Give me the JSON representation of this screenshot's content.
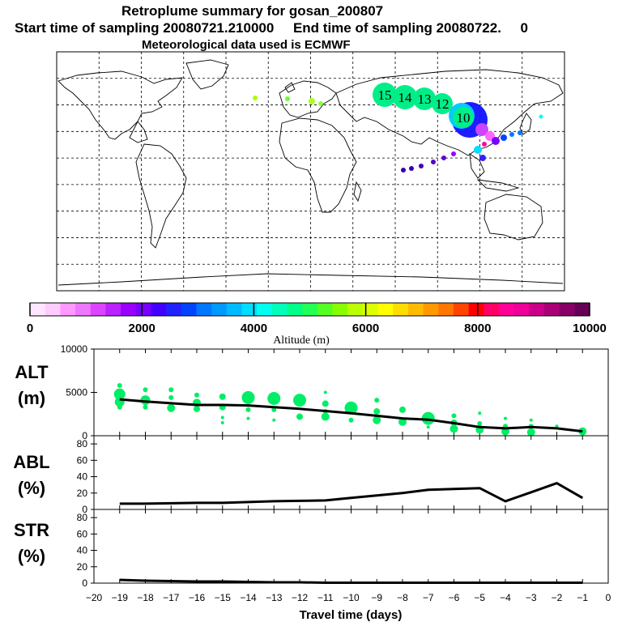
{
  "header": {
    "title": "Retroplume summary for gosan_200807",
    "line2": "Start time of sampling 20080721.210000     End time of sampling 20080722.     0",
    "line3": "Meteorological data used is ECMWF"
  },
  "colorbar": {
    "label": "Altitude (m)",
    "ticks": [
      "0",
      "2000",
      "4000",
      "6000",
      "8000",
      "10000"
    ],
    "colors": [
      "#ffe6ff",
      "#ffccff",
      "#ff99ff",
      "#ee77ff",
      "#dd44ff",
      "#bb22ff",
      "#9900ff",
      "#7700ff",
      "#4400ff",
      "#2222ff",
      "#0044ff",
      "#0077ff",
      "#0099ff",
      "#00bbff",
      "#00ddff",
      "#00ffee",
      "#00ffbb",
      "#00ff88",
      "#22ff55",
      "#55ff22",
      "#88ff00",
      "#bbff00",
      "#ddff00",
      "#ffff00",
      "#ffdd00",
      "#ffbb00",
      "#ff9900",
      "#ff7700",
      "#ff4400",
      "#ff0000",
      "#ff0066",
      "#ff0099",
      "#ee0099",
      "#cc0088",
      "#aa0077",
      "#880066",
      "#660055"
    ]
  },
  "map": {
    "plume_labels": [
      "15",
      "14",
      "13",
      "12",
      "10"
    ],
    "plume_color": "#00ee88"
  },
  "chart_data": [
    {
      "type": "line",
      "panel": "ALT",
      "ylabel_line1": "ALT",
      "ylabel_line2": "(m)",
      "ylim": [
        0,
        10000
      ],
      "yticks": [
        "10000",
        "5000",
        "0"
      ],
      "x": [
        -19,
        -18,
        -17,
        -16,
        -15,
        -14,
        -13,
        -12,
        -11,
        -10,
        -9,
        -8,
        -7,
        -6,
        -5,
        -4,
        -3,
        -2,
        -1
      ],
      "values": [
        4200,
        3950,
        3750,
        3550,
        3550,
        3500,
        3300,
        3100,
        2850,
        2600,
        2300,
        2000,
        1850,
        1450,
        1000,
        850,
        1000,
        850,
        500
      ],
      "cluster_points": [
        {
          "x": -19,
          "y": 4800,
          "s": 7
        },
        {
          "x": -19,
          "y": 3900,
          "s": 6
        },
        {
          "x": -19,
          "y": 5800,
          "s": 3
        },
        {
          "x": -19,
          "y": 3300,
          "s": 3
        },
        {
          "x": -18,
          "y": 4100,
          "s": 6
        },
        {
          "x": -18,
          "y": 5300,
          "s": 3
        },
        {
          "x": -18,
          "y": 3300,
          "s": 3
        },
        {
          "x": -17,
          "y": 4400,
          "s": 3
        },
        {
          "x": -17,
          "y": 3200,
          "s": 5
        },
        {
          "x": -17,
          "y": 5300,
          "s": 3
        },
        {
          "x": -16,
          "y": 3800,
          "s": 5
        },
        {
          "x": -16,
          "y": 4700,
          "s": 3
        },
        {
          "x": -16,
          "y": 3100,
          "s": 4
        },
        {
          "x": -15,
          "y": 3300,
          "s": 4
        },
        {
          "x": -15,
          "y": 4500,
          "s": 4
        },
        {
          "x": -15,
          "y": 2100,
          "s": 2
        },
        {
          "x": -15,
          "y": 1500,
          "s": 2
        },
        {
          "x": -14,
          "y": 4400,
          "s": 8
        },
        {
          "x": -14,
          "y": 3000,
          "s": 3
        },
        {
          "x": -14,
          "y": 2000,
          "s": 2
        },
        {
          "x": -13,
          "y": 4300,
          "s": 8
        },
        {
          "x": -13,
          "y": 3000,
          "s": 3
        },
        {
          "x": -13,
          "y": 1800,
          "s": 2
        },
        {
          "x": -12,
          "y": 4100,
          "s": 8
        },
        {
          "x": -12,
          "y": 2200,
          "s": 4
        },
        {
          "x": -11,
          "y": 3700,
          "s": 4
        },
        {
          "x": -11,
          "y": 2800,
          "s": 3
        },
        {
          "x": -11,
          "y": 2200,
          "s": 5
        },
        {
          "x": -11,
          "y": 5000,
          "s": 2
        },
        {
          "x": -10,
          "y": 3200,
          "s": 8
        },
        {
          "x": -10,
          "y": 1800,
          "s": 3
        },
        {
          "x": -9,
          "y": 4100,
          "s": 3
        },
        {
          "x": -9,
          "y": 2800,
          "s": 4
        },
        {
          "x": -9,
          "y": 1800,
          "s": 5
        },
        {
          "x": -8,
          "y": 3000,
          "s": 4
        },
        {
          "x": -8,
          "y": 1600,
          "s": 5
        },
        {
          "x": -7,
          "y": 2000,
          "s": 8
        },
        {
          "x": -7,
          "y": 1000,
          "s": 2
        },
        {
          "x": -6,
          "y": 2300,
          "s": 3
        },
        {
          "x": -6,
          "y": 1500,
          "s": 4
        },
        {
          "x": -6,
          "y": 800,
          "s": 5
        },
        {
          "x": -5,
          "y": 1400,
          "s": 3
        },
        {
          "x": -5,
          "y": 700,
          "s": 5
        },
        {
          "x": -5,
          "y": 2600,
          "s": 2
        },
        {
          "x": -4,
          "y": 2000,
          "s": 2
        },
        {
          "x": -4,
          "y": 1100,
          "s": 3
        },
        {
          "x": -4,
          "y": 500,
          "s": 5
        },
        {
          "x": -3,
          "y": 1800,
          "s": 2
        },
        {
          "x": -3,
          "y": 1100,
          "s": 3
        },
        {
          "x": -3,
          "y": 400,
          "s": 5
        },
        {
          "x": -2,
          "y": 1100,
          "s": 2
        },
        {
          "x": -1,
          "y": 500,
          "s": 5
        }
      ],
      "point_color": "#00ee66"
    },
    {
      "type": "line",
      "panel": "ABL",
      "ylabel_line1": "ABL",
      "ylabel_line2": "(%)",
      "ylim": [
        0,
        90
      ],
      "yticks": [
        "80",
        "60",
        "40",
        "20",
        "0"
      ],
      "x": [
        -19,
        -18,
        -17,
        -16,
        -15,
        -14,
        -13,
        -12,
        -11,
        -10,
        -9,
        -8,
        -7,
        -6,
        -5,
        -4,
        -3,
        -2,
        -1
      ],
      "values": [
        7,
        7,
        7.5,
        8,
        8,
        9,
        10,
        10.5,
        11,
        14,
        17,
        20,
        24,
        25,
        26,
        10,
        21,
        32,
        14
      ]
    },
    {
      "type": "line",
      "panel": "STR",
      "ylabel_line1": "STR",
      "ylabel_line2": "(%)",
      "ylim": [
        0,
        90
      ],
      "yticks": [
        "80",
        "60",
        "40",
        "20",
        "0"
      ],
      "x": [
        -19,
        -18,
        -17,
        -16,
        -15,
        -14,
        -13,
        -12,
        -11,
        -10,
        -9,
        -8,
        -7,
        -6,
        -5,
        -4,
        -3,
        -2,
        -1
      ],
      "values": [
        4,
        3,
        2.5,
        2,
        2,
        1.5,
        1,
        1,
        0.5,
        0.5,
        0.5,
        0.5,
        0.5,
        0.5,
        0.5,
        0.5,
        0.5,
        0.5,
        0.5
      ],
      "xlabel": "Travel time (days)",
      "xlim": [
        -20,
        0
      ],
      "xticks": [
        "−20",
        "−19",
        "−18",
        "−17",
        "−16",
        "−15",
        "−14",
        "−13",
        "−12",
        "−11",
        "−10",
        "−9",
        "−8",
        "−7",
        "−6",
        "−5",
        "−4",
        "−3",
        "−2",
        "−1",
        "0"
      ]
    }
  ]
}
